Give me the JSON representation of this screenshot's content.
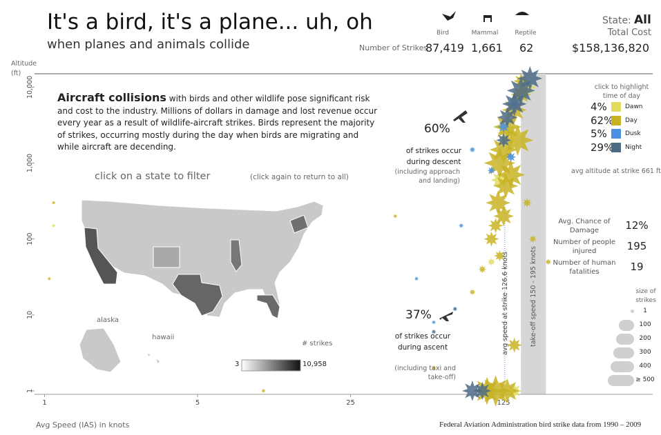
{
  "header": {
    "title": "It's a bird, it's a plane... uh, oh",
    "subtitle": "when planes and animals collide",
    "strikes_label": "Number of Strikes",
    "animals": [
      {
        "name": "Bird",
        "count": "87,419"
      },
      {
        "name": "Mammal",
        "count": "1,661"
      },
      {
        "name": "Reptile",
        "count": "62"
      }
    ],
    "state_label": "State:",
    "state_value": "All",
    "cost_label": "Total Cost",
    "cost_value": "$158,136,820"
  },
  "intro": {
    "heading": "Aircraft collisions",
    "body": "with birds and other wildlife pose significant risk and cost to the industry.  Millions of dollars in damage and lost revenue occur every year as a result of wildlife-aircraft strikes. Birds represent the majority of strikes, occurring mostly during the day when birds are migrating and while aircraft are decending."
  },
  "map": {
    "instruction": "click on a state to filter",
    "hint": "(click again to return to all)",
    "alaska": "alaska",
    "hawaii": "hawaii",
    "legend_title": "# strikes",
    "legend_min": "3",
    "legend_max": "10,958"
  },
  "descent": {
    "pct": "60%",
    "text": "of strikes occur during descent",
    "note": "(including approach and landing)"
  },
  "ascent": {
    "pct": "37%",
    "text": "of strikes occur during ascent",
    "note": "(including taxi and take-off)"
  },
  "time_of_day": {
    "hint": "click to highlight time of day",
    "items": [
      {
        "pct": "4%",
        "name": "Dawn"
      },
      {
        "pct": "62%",
        "name": "Day"
      },
      {
        "pct": "5%",
        "name": "Dusk"
      },
      {
        "pct": "29%",
        "name": "Night"
      }
    ],
    "avg_altitude": "avg altitude at strike 661 ft"
  },
  "stats": [
    {
      "label": "Avg. Chance of Damage",
      "value": "12%"
    },
    {
      "label": "Number of people injured",
      "value": "195"
    },
    {
      "label": "Number of human fatalities",
      "value": "19"
    }
  ],
  "size_legend": {
    "title": "size of strikes",
    "items": [
      "1",
      "100",
      "200",
      "300",
      "400",
      "≥ 500"
    ]
  },
  "footer": {
    "x_label": "Avg  Speed (IAS) in knots",
    "source": "Federal Aviation Administration bird strike data from 1990 – 2009"
  },
  "chart_data": {
    "type": "scatter",
    "y_label": "Altitude (ft)",
    "xscale": "log",
    "yscale": "log",
    "xlim": [
      0.9,
      600
    ],
    "ylim": [
      0.9,
      15000
    ],
    "xticks": [
      1,
      5,
      25,
      125
    ],
    "yticks": [
      1,
      10,
      100,
      {
        "value": 1000,
        "label": "1,000"
      },
      {
        "value": 10000,
        "label": "10,000"
      }
    ],
    "avg_speed_line": {
      "value": 126.6,
      "label": "avg speed at strike 126.6 knots"
    },
    "takeoff_band": {
      "range": [
        150,
        195
      ],
      "label": "take-off speed 150 - 195 knots"
    },
    "series": [
      {
        "name": "Dawn",
        "color": "#e2dc5e",
        "x": [
          160,
          130,
          120,
          110,
          140,
          1.1
        ],
        "values": [
          10000,
          2500,
          600,
          50,
          1,
          150
        ],
        "sizes": [
          150,
          200,
          150,
          20,
          100,
          2
        ]
      },
      {
        "name": "Day",
        "color": "#c8b324",
        "x": [
          150,
          140,
          130,
          145,
          125,
          120,
          135,
          128,
          118,
          125,
          115,
          110,
          120,
          100,
          90,
          115,
          105,
          130,
          140,
          160,
          170,
          60,
          40,
          1.1,
          1.05,
          10,
          200,
          150
        ],
        "values": [
          8000,
          5000,
          3000,
          2000,
          1500,
          1000,
          700,
          500,
          300,
          200,
          150,
          100,
          60,
          40,
          20,
          1,
          1,
          1,
          4,
          300,
          100,
          2,
          200,
          300,
          30,
          1,
          50,
          12000
        ],
        "sizes": [
          200,
          300,
          400,
          500,
          400,
          500,
          400,
          300,
          300,
          200,
          100,
          100,
          50,
          20,
          10,
          500,
          400,
          300,
          100,
          30,
          20,
          5,
          3,
          2,
          2,
          3,
          10,
          100
        ]
      },
      {
        "name": "Dusk",
        "color": "#4a8fe2",
        "x": [
          140,
          125,
          135,
          90,
          80,
          50,
          60,
          110
        ],
        "values": [
          6000,
          3000,
          1200,
          1500,
          150,
          30,
          8,
          800
        ],
        "sizes": [
          80,
          60,
          40,
          10,
          5,
          3,
          3,
          20
        ]
      },
      {
        "name": "Night",
        "color": "#4e6b86",
        "x": [
          150,
          165,
          140,
          130,
          125,
          90,
          100,
          75,
          60
        ],
        "values": [
          9000,
          13000,
          6000,
          4000,
          2000,
          1,
          1,
          12,
          6
        ],
        "sizes": [
          400,
          300,
          300,
          200,
          100,
          200,
          150,
          5,
          5
        ]
      }
    ]
  }
}
